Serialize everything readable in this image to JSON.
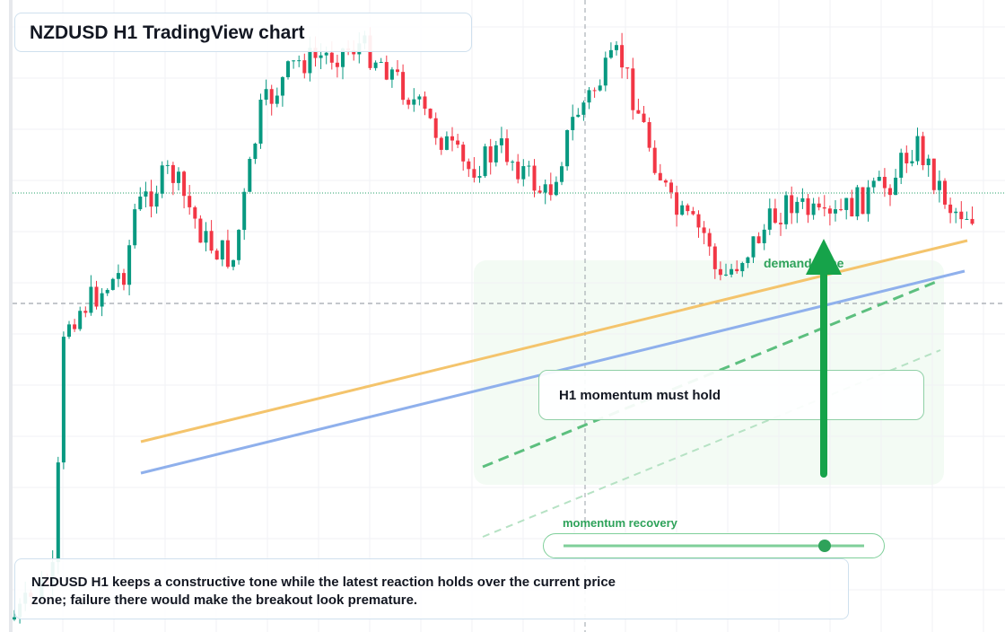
{
  "header": {
    "title": "NZDUSD H1 TradingView chart"
  },
  "annotations": {
    "demand_zone": "demand zone",
    "momentum_box": "H1 momentum must hold",
    "slider_label": "momentum recovery"
  },
  "caption": "NZDUSD H1 keeps a constructive tone while the latest reaction holds over the current price zone; failure there would make the breakout look premature."
}
